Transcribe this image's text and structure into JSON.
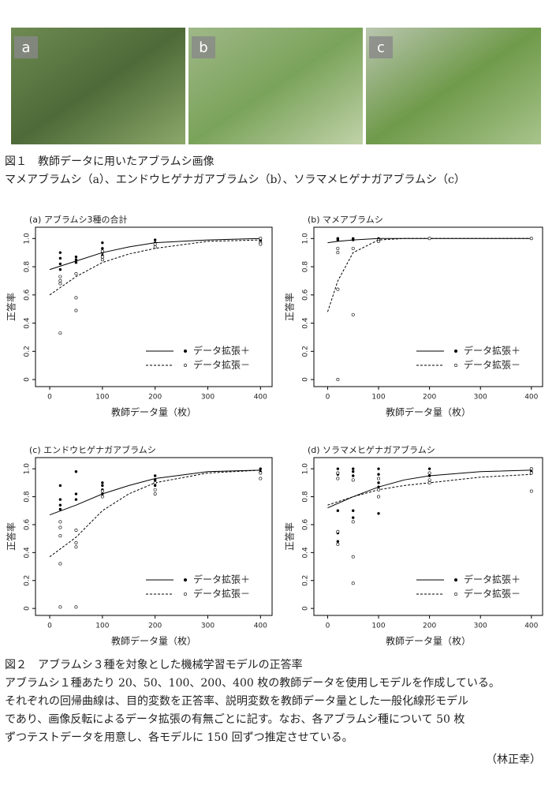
{
  "figure1": {
    "labels": [
      "a",
      "b",
      "c"
    ],
    "caption": "図１　教師データに用いたアブラムシ画像",
    "subcaption": "マメアブラムシ（a）、エンドウヒゲナガアブラムシ（b）、ソラマメヒゲナガアブラムシ（c）"
  },
  "chart_data": [
    {
      "type": "scatter",
      "title": "(a) アブラムシ3種の合計",
      "xlabel": "教師データ量（枚）",
      "ylabel": "正答率",
      "xlim": [
        -27,
        422
      ],
      "xticks": [
        0,
        100,
        200,
        300,
        400
      ],
      "ylim": [
        -0.05,
        1.08
      ],
      "yticks": [
        0,
        0.2,
        0.4,
        0.6,
        0.8,
        {
          "value": 1,
          "label": "1.0"
        }
      ],
      "legend": "lower right",
      "series": [
        {
          "name": "データ拡張＋",
          "marker": "filled",
          "dash": false,
          "color": "#000000",
          "x": [
            20,
            20,
            20,
            20,
            50,
            50,
            50,
            100,
            100,
            100,
            100,
            200,
            200,
            400,
            400,
            400
          ],
          "values": [
            0.9,
            0.86,
            0.82,
            0.78,
            0.87,
            0.85,
            0.83,
            0.97,
            0.93,
            0.9,
            0.88,
            0.99,
            0.97,
            1.0,
            0.99,
            0.98
          ],
          "fit_x": [
            0,
            50,
            100,
            150,
            200,
            300,
            400
          ],
          "fit": [
            0.78,
            0.84,
            0.9,
            0.94,
            0.97,
            0.99,
            1.0
          ]
        },
        {
          "name": "データ拡張－",
          "marker": "open",
          "dash": true,
          "color": "#000000",
          "x": [
            20,
            20,
            20,
            20,
            50,
            50,
            50,
            100,
            100,
            100,
            200,
            200,
            400,
            400,
            400
          ],
          "values": [
            0.73,
            0.7,
            0.68,
            0.33,
            0.75,
            0.58,
            0.49,
            0.91,
            0.87,
            0.85,
            0.96,
            0.94,
            1.0,
            0.97,
            0.96
          ],
          "fit_x": [
            0,
            50,
            100,
            150,
            200,
            300,
            400
          ],
          "fit": [
            0.6,
            0.73,
            0.83,
            0.89,
            0.93,
            0.98,
            0.99
          ]
        }
      ]
    },
    {
      "type": "scatter",
      "title": "(b) マメアブラムシ",
      "xlabel": "教師データ量（枚）",
      "ylabel": "正答率",
      "xlim": [
        -27,
        422
      ],
      "xticks": [
        0,
        100,
        200,
        300,
        400
      ],
      "ylim": [
        -0.05,
        1.08
      ],
      "yticks": [
        0,
        0.2,
        0.4,
        0.6,
        0.8,
        {
          "value": 1,
          "label": "1.0"
        }
      ],
      "legend": "lower right",
      "series": [
        {
          "name": "データ拡張＋",
          "marker": "filled",
          "dash": false,
          "color": "#000000",
          "x": [
            20,
            20,
            20,
            50,
            50,
            100,
            100,
            200,
            400
          ],
          "values": [
            1.0,
            1.0,
            0.99,
            1.0,
            0.99,
            1.0,
            0.99,
            1.0,
            1.0
          ],
          "fit_x": [
            0,
            20,
            50,
            100,
            200,
            300,
            400
          ],
          "fit": [
            0.97,
            0.98,
            0.99,
            1.0,
            1.0,
            1.0,
            1.0
          ]
        },
        {
          "name": "データ拡張－",
          "marker": "open",
          "dash": true,
          "color": "#000000",
          "x": [
            20,
            20,
            20,
            20,
            50,
            50,
            100,
            100,
            200,
            400
          ],
          "values": [
            0.93,
            0.9,
            0.64,
            0.0,
            0.93,
            0.46,
            0.99,
            0.98,
            1.0,
            1.0
          ],
          "fit_x": [
            0,
            20,
            50,
            100,
            150,
            200,
            300,
            400
          ],
          "fit": [
            0.48,
            0.7,
            0.9,
            0.99,
            1.0,
            1.0,
            1.0,
            1.0
          ]
        }
      ]
    },
    {
      "type": "scatter",
      "title": "(c) エンドウヒゲナガアブラムシ",
      "xlabel": "教師データ量（枚）",
      "ylabel": "正答率",
      "xlim": [
        -27,
        422
      ],
      "xticks": [
        0,
        100,
        200,
        300,
        400
      ],
      "ylim": [
        -0.05,
        1.08
      ],
      "yticks": [
        0,
        0.2,
        0.4,
        0.6,
        0.8,
        {
          "value": 1,
          "label": "1.0"
        }
      ],
      "legend": "lower right",
      "series": [
        {
          "name": "データ拡張＋",
          "marker": "filled",
          "dash": false,
          "color": "#000000",
          "x": [
            20,
            20,
            20,
            20,
            50,
            50,
            50,
            100,
            100,
            100,
            100,
            200,
            200,
            200,
            400,
            400
          ],
          "values": [
            0.88,
            0.78,
            0.74,
            0.71,
            0.98,
            0.82,
            0.78,
            0.9,
            0.88,
            0.85,
            0.82,
            0.95,
            0.92,
            0.88,
            1.0,
            0.98
          ],
          "fit_x": [
            0,
            50,
            100,
            150,
            200,
            300,
            400
          ],
          "fit": [
            0.67,
            0.74,
            0.82,
            0.88,
            0.93,
            0.98,
            0.99
          ]
        },
        {
          "name": "データ拡張－",
          "marker": "open",
          "dash": true,
          "color": "#000000",
          "x": [
            20,
            20,
            20,
            20,
            20,
            50,
            50,
            50,
            50,
            100,
            100,
            200,
            200,
            200,
            400,
            400
          ],
          "values": [
            0.62,
            0.58,
            0.52,
            0.32,
            0.01,
            0.56,
            0.47,
            0.44,
            0.01,
            0.84,
            0.8,
            0.9,
            0.85,
            0.82,
            0.97,
            0.93
          ],
          "fit_x": [
            0,
            50,
            100,
            150,
            200,
            300,
            400
          ],
          "fit": [
            0.37,
            0.51,
            0.7,
            0.82,
            0.9,
            0.97,
            0.99
          ]
        }
      ]
    },
    {
      "type": "scatter",
      "title": "(d) ソラマメヒゲナガアブラムシ",
      "xlabel": "教師データ量（枚）",
      "ylabel": "正答率",
      "xlim": [
        -27,
        422
      ],
      "xticks": [
        0,
        100,
        200,
        300,
        400
      ],
      "ylim": [
        -0.05,
        1.08
      ],
      "yticks": [
        0,
        0.2,
        0.4,
        0.6,
        0.8,
        {
          "value": 1,
          "label": "1.0"
        }
      ],
      "legend": "lower right",
      "series": [
        {
          "name": "データ拡張＋",
          "marker": "filled",
          "dash": false,
          "color": "#000000",
          "x": [
            20,
            20,
            20,
            20,
            20,
            20,
            50,
            50,
            50,
            50,
            50,
            100,
            100,
            100,
            100,
            100,
            200,
            200,
            200,
            400,
            400
          ],
          "values": [
            1.0,
            0.96,
            0.93,
            0.7,
            0.54,
            0.48,
            1.0,
            0.98,
            0.95,
            0.7,
            0.65,
            1.0,
            0.96,
            0.9,
            0.87,
            0.68,
            1.0,
            0.97,
            0.95,
            1.0,
            0.98
          ],
          "fit_x": [
            0,
            50,
            100,
            150,
            200,
            300,
            400
          ],
          "fit": [
            0.72,
            0.8,
            0.87,
            0.92,
            0.95,
            0.98,
            0.99
          ]
        },
        {
          "name": "データ拡張－",
          "marker": "open",
          "dash": true,
          "color": "#000000",
          "x": [
            20,
            20,
            20,
            20,
            50,
            50,
            50,
            50,
            100,
            100,
            100,
            200,
            200,
            200,
            400,
            400,
            400
          ],
          "values": [
            0.97,
            0.93,
            0.55,
            0.46,
            0.92,
            0.62,
            0.37,
            0.18,
            0.93,
            0.85,
            0.8,
            0.97,
            0.92,
            0.9,
            1.0,
            0.97,
            0.84
          ],
          "fit_x": [
            0,
            50,
            100,
            150,
            200,
            300,
            400
          ],
          "fit": [
            0.74,
            0.8,
            0.85,
            0.88,
            0.9,
            0.94,
            0.96
          ]
        }
      ]
    }
  ],
  "figure2": {
    "caption": "図２　アブラムシ３種を対象とした機械学習モデルの正答率",
    "body": [
      "アブラムシ１種あたり 20、50、100、200、400 枚の教師データを使用しモデルを作成している。",
      "それぞれの回帰曲線は、目的変数を正答率、説明変数を教師データ量とした一般化線形モデル",
      "であり、画像反転によるデータ拡張の有無ごとに記す。なお、各アブラムシ種について 50 枚",
      "ずつテストデータを用意し、各モデルに 150 回ずつ推定させている。"
    ],
    "author": "（林正幸）"
  }
}
